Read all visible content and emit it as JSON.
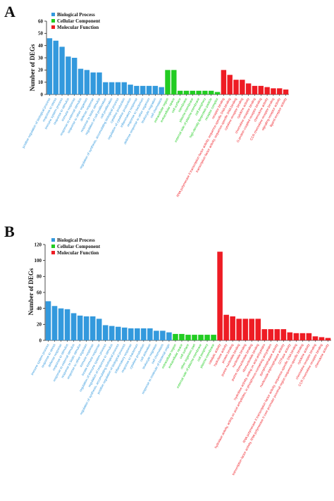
{
  "figure": {
    "colors": {
      "Biological Process": "#3399dd",
      "Cellular Component": "#22cc22",
      "Molecular Function": "#ee1c24",
      "axis": "#222222"
    }
  },
  "chart_data": [
    {
      "panel": "A",
      "type": "bar",
      "ylabel": "Number of DEGs",
      "ylim": [
        0,
        60
      ],
      "yticks": [
        0,
        10,
        20,
        30,
        40,
        50,
        60
      ],
      "legend": [
        "Biological Process",
        "Cellular Component",
        "Molecular Function"
      ],
      "legend_position": "top-left",
      "bars": [
        {
          "label": "positive regulation of biological process",
          "value": 46,
          "group": "Biological Process"
        },
        {
          "label": "response to stress",
          "value": 44,
          "group": "Biological Process"
        },
        {
          "label": "immune system process",
          "value": 39,
          "group": "Biological Process"
        },
        {
          "label": "response to stimulus",
          "value": 31,
          "group": "Biological Process"
        },
        {
          "label": "immune response",
          "value": 30,
          "group": "Biological Process"
        },
        {
          "label": "response to external stimulus",
          "value": 21,
          "group": "Biological Process"
        },
        {
          "label": "response to other organism",
          "value": 20,
          "group": "Biological Process"
        },
        {
          "label": "defense response",
          "value": 18,
          "group": "Biological Process"
        },
        {
          "label": "response to biotic stimulus",
          "value": 18,
          "group": "Biological Process"
        },
        {
          "label": "regulation of cell proliferation",
          "value": 10,
          "group": "Biological Process"
        },
        {
          "label": "cell proliferation",
          "value": 10,
          "group": "Biological Process"
        },
        {
          "label": "regulation of synthesis, accumulating biological process",
          "value": 10,
          "group": "Biological Process"
        },
        {
          "label": "cytokine production",
          "value": 10,
          "group": "Biological Process"
        },
        {
          "label": "regulation of cytokine production",
          "value": 8,
          "group": "Biological Process"
        },
        {
          "label": "inflammatory response",
          "value": 7,
          "group": "Biological Process"
        },
        {
          "label": "response to bacterium",
          "value": 7,
          "group": "Biological Process"
        },
        {
          "label": "defense response to other organism",
          "value": 7,
          "group": "Biological Process"
        },
        {
          "label": "leukocyte migration",
          "value": 7,
          "group": "Biological Process"
        },
        {
          "label": "cell chemotaxis",
          "value": 6,
          "group": "Biological Process"
        },
        {
          "label": "extracellular region",
          "value": 20,
          "group": "Cellular Component"
        },
        {
          "label": "extracellular space",
          "value": 20,
          "group": "Cellular Component"
        },
        {
          "label": "cell surface",
          "value": 3,
          "group": "Cellular Component"
        },
        {
          "label": "membrane",
          "value": 3,
          "group": "Cellular Component"
        },
        {
          "label": "plasma membrane",
          "value": 3,
          "group": "Cellular Component"
        },
        {
          "label": "external side of plasma membrane",
          "value": 3,
          "group": "Cellular Component"
        },
        {
          "label": "cell periphery",
          "value": 3,
          "group": "Cellular Component"
        },
        {
          "label": "high-density lipoprotein particle",
          "value": 3,
          "group": "Cellular Component"
        },
        {
          "label": "receptor complex",
          "value": 2,
          "group": "Cellular Component"
        },
        {
          "label": "receptor binding",
          "value": 20,
          "group": "Molecular Function"
        },
        {
          "label": "RNA polymerase II transcription factor activity, sequence-specific DNA binding",
          "value": 16,
          "group": "Molecular Function"
        },
        {
          "label": "transcription factor activity, sequence-specific DNA binding",
          "value": 12,
          "group": "Molecular Function"
        },
        {
          "label": "cytokine receptor binding",
          "value": 12,
          "group": "Molecular Function"
        },
        {
          "label": "cytokine activity",
          "value": 9,
          "group": "Molecular Function"
        },
        {
          "label": "chemokine receptor binding",
          "value": 7,
          "group": "Molecular Function"
        },
        {
          "label": "G-protein coupled receptor binding",
          "value": 7,
          "group": "Molecular Function"
        },
        {
          "label": "chemokine activity",
          "value": 6,
          "group": "Molecular Function"
        },
        {
          "label": "CCR chemokine receptor binding",
          "value": 5,
          "group": "Molecular Function"
        },
        {
          "label": "signaling receptor activity",
          "value": 5,
          "group": "Molecular Function"
        },
        {
          "label": "ligand receptor activity",
          "value": 4,
          "group": "Molecular Function"
        }
      ]
    },
    {
      "panel": "B",
      "type": "bar",
      "ylabel": "Number of DEGs",
      "ylim": [
        0,
        120
      ],
      "yticks": [
        0,
        20,
        40,
        60,
        80,
        100,
        120
      ],
      "legend": [
        "Biological Process",
        "Cellular Component",
        "Molecular Function"
      ],
      "legend_position": "top-left",
      "bars": [
        {
          "label": "immune system process",
          "value": 49,
          "group": "Biological Process"
        },
        {
          "label": "response to stress",
          "value": 43,
          "group": "Biological Process"
        },
        {
          "label": "defense response",
          "value": 40,
          "group": "Biological Process"
        },
        {
          "label": "response to stimulus",
          "value": 39,
          "group": "Biological Process"
        },
        {
          "label": "response to external stimulus",
          "value": 34,
          "group": "Biological Process"
        },
        {
          "label": "response to biotic stimulus",
          "value": 31,
          "group": "Biological Process"
        },
        {
          "label": "response to other organism",
          "value": 30,
          "group": "Biological Process"
        },
        {
          "label": "immune response",
          "value": 30,
          "group": "Biological Process"
        },
        {
          "label": "innate immune response",
          "value": 27,
          "group": "Biological Process"
        },
        {
          "label": "regulation of immune system process",
          "value": 19,
          "group": "Biological Process"
        },
        {
          "label": "regulation of response to stimulus",
          "value": 18,
          "group": "Biological Process"
        },
        {
          "label": "regulation of synthesis, accumulating biological process",
          "value": 17,
          "group": "Biological Process"
        },
        {
          "label": "positive regulation of biological process",
          "value": 16,
          "group": "Biological Process"
        },
        {
          "label": "inflammatory response",
          "value": 15,
          "group": "Biological Process"
        },
        {
          "label": "response to bacterium",
          "value": 15,
          "group": "Biological Process"
        },
        {
          "label": "cytokine production",
          "value": 15,
          "group": "Biological Process"
        },
        {
          "label": "cell activation",
          "value": 15,
          "group": "Biological Process"
        },
        {
          "label": "leukocyte migration",
          "value": 12,
          "group": "Biological Process"
        },
        {
          "label": "cell chemotaxis",
          "value": 12,
          "group": "Biological Process"
        },
        {
          "label": "response to molecule of bacterial origin",
          "value": 10,
          "group": "Biological Process"
        },
        {
          "label": "extracellular region",
          "value": 8,
          "group": "Cellular Component"
        },
        {
          "label": "extracellular space",
          "value": 8,
          "group": "Cellular Component"
        },
        {
          "label": "cell surface",
          "value": 7,
          "group": "Cellular Component"
        },
        {
          "label": "other organism part",
          "value": 7,
          "group": "Cellular Component"
        },
        {
          "label": "external side of plasma membrane",
          "value": 7,
          "group": "Cellular Component"
        },
        {
          "label": "cell periphery",
          "value": 7,
          "group": "Cellular Component"
        },
        {
          "label": "plasma membrane",
          "value": 7,
          "group": "Cellular Component"
        },
        {
          "label": "catalytic activity",
          "value": 111,
          "group": "Molecular Function"
        },
        {
          "label": "hydrolase activity",
          "value": 32,
          "group": "Molecular Function"
        },
        {
          "label": "protein binding",
          "value": 30,
          "group": "Molecular Function"
        },
        {
          "label": "purine nucleotide binding",
          "value": 27,
          "group": "Molecular Function"
        },
        {
          "label": "nucleotide binding",
          "value": 27,
          "group": "Molecular Function"
        },
        {
          "label": "purine ribonucleotide binding",
          "value": 27,
          "group": "Molecular Function"
        },
        {
          "label": "ribonucleotide binding",
          "value": 27,
          "group": "Molecular Function"
        },
        {
          "label": "hydrolase activity, acting on acid anhydrides",
          "value": 14,
          "group": "Molecular Function"
        },
        {
          "label": "hydrolase activity, acting on acid anhydrides, in phosphorus-containing anhydrides",
          "value": 14,
          "group": "Molecular Function"
        },
        {
          "label": "pyrophosphatase activity",
          "value": 14,
          "group": "Molecular Function"
        },
        {
          "label": "nucleoside-triphosphatase activity",
          "value": 14,
          "group": "Molecular Function"
        },
        {
          "label": "GTPase activity",
          "value": 10,
          "group": "Molecular Function"
        },
        {
          "label": "RNA polymerase II transcription factor activity, sequence-specific DNA binding",
          "value": 9,
          "group": "Molecular Function"
        },
        {
          "label": "transcription factor activity, RNA polymerase II core promoter proximal region sequence-specific binding",
          "value": 9,
          "group": "Molecular Function"
        },
        {
          "label": "cytokine activity",
          "value": 9,
          "group": "Molecular Function"
        },
        {
          "label": "chemokine receptor binding",
          "value": 5,
          "group": "Molecular Function"
        },
        {
          "label": "CCR chemokine receptor binding",
          "value": 4,
          "group": "Molecular Function"
        },
        {
          "label": "chemokine activity",
          "value": 3,
          "group": "Molecular Function"
        }
      ]
    }
  ]
}
